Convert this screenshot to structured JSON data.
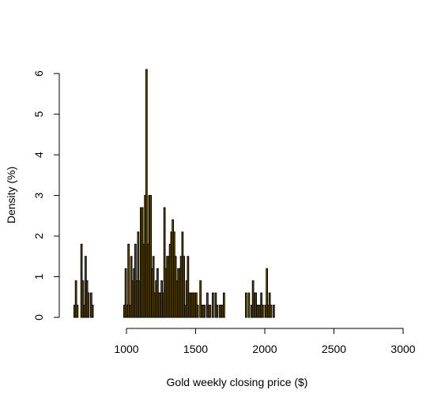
{
  "chart_data": {
    "type": "bar",
    "title": "",
    "xlabel": "Gold weekly closing price ($)",
    "ylabel": "Density (%)",
    "bin_width": 10,
    "xlim": [
      600,
      3000
    ],
    "ylim": [
      0,
      6.1
    ],
    "x_ticks": [
      1000,
      1500,
      2000,
      2500,
      3000
    ],
    "y_ticks": [
      0,
      1,
      2,
      3,
      4,
      5,
      6
    ],
    "grid": false,
    "bar_color": "#7f6000",
    "bins": [
      {
        "x": 620,
        "value": 0.3
      },
      {
        "x": 630,
        "value": 0.9
      },
      {
        "x": 640,
        "value": 0.3
      },
      {
        "x": 670,
        "value": 1.8
      },
      {
        "x": 680,
        "value": 0.9
      },
      {
        "x": 690,
        "value": 0.3
      },
      {
        "x": 700,
        "value": 1.5
      },
      {
        "x": 710,
        "value": 0.9
      },
      {
        "x": 720,
        "value": 0.6
      },
      {
        "x": 740,
        "value": 0.6
      },
      {
        "x": 750,
        "value": 0.3
      },
      {
        "x": 980,
        "value": 0.3
      },
      {
        "x": 990,
        "value": 1.2
      },
      {
        "x": 1000,
        "value": 0.3
      },
      {
        "x": 1010,
        "value": 1.8
      },
      {
        "x": 1020,
        "value": 0.3
      },
      {
        "x": 1030,
        "value": 1.5
      },
      {
        "x": 1040,
        "value": 0.9
      },
      {
        "x": 1050,
        "value": 1.2
      },
      {
        "x": 1060,
        "value": 1.8
      },
      {
        "x": 1070,
        "value": 0.9
      },
      {
        "x": 1080,
        "value": 2.1
      },
      {
        "x": 1090,
        "value": 0.9
      },
      {
        "x": 1100,
        "value": 2.7
      },
      {
        "x": 1110,
        "value": 2.7
      },
      {
        "x": 1120,
        "value": 1.8
      },
      {
        "x": 1130,
        "value": 3.0
      },
      {
        "x": 1140,
        "value": 6.1
      },
      {
        "x": 1150,
        "value": 1.8
      },
      {
        "x": 1160,
        "value": 3.0
      },
      {
        "x": 1170,
        "value": 3.0
      },
      {
        "x": 1180,
        "value": 1.2
      },
      {
        "x": 1190,
        "value": 1.5
      },
      {
        "x": 1200,
        "value": 0.6
      },
      {
        "x": 1210,
        "value": 0.9
      },
      {
        "x": 1220,
        "value": 1.2
      },
      {
        "x": 1230,
        "value": 0.6
      },
      {
        "x": 1240,
        "value": 0.6
      },
      {
        "x": 1250,
        "value": 0.9
      },
      {
        "x": 1260,
        "value": 0.6
      },
      {
        "x": 1270,
        "value": 2.7
      },
      {
        "x": 1280,
        "value": 1.2
      },
      {
        "x": 1290,
        "value": 1.5
      },
      {
        "x": 1300,
        "value": 1.5
      },
      {
        "x": 1310,
        "value": 1.8
      },
      {
        "x": 1320,
        "value": 2.1
      },
      {
        "x": 1330,
        "value": 2.4
      },
      {
        "x": 1340,
        "value": 2.1
      },
      {
        "x": 1350,
        "value": 1.5
      },
      {
        "x": 1360,
        "value": 0.9
      },
      {
        "x": 1370,
        "value": 1.2
      },
      {
        "x": 1380,
        "value": 1.2
      },
      {
        "x": 1390,
        "value": 1.5
      },
      {
        "x": 1400,
        "value": 2.1
      },
      {
        "x": 1410,
        "value": 1.5
      },
      {
        "x": 1420,
        "value": 0.3
      },
      {
        "x": 1430,
        "value": 0.9
      },
      {
        "x": 1440,
        "value": 1.5
      },
      {
        "x": 1450,
        "value": 0.6
      },
      {
        "x": 1460,
        "value": 0.6
      },
      {
        "x": 1470,
        "value": 0.6
      },
      {
        "x": 1480,
        "value": 0.6
      },
      {
        "x": 1490,
        "value": 0.6
      },
      {
        "x": 1500,
        "value": 0.6
      },
      {
        "x": 1510,
        "value": 0.3
      },
      {
        "x": 1530,
        "value": 0.9
      },
      {
        "x": 1540,
        "value": 0.3
      },
      {
        "x": 1550,
        "value": 0.3
      },
      {
        "x": 1560,
        "value": 0.3
      },
      {
        "x": 1580,
        "value": 0.6
      },
      {
        "x": 1590,
        "value": 0.3
      },
      {
        "x": 1600,
        "value": 0.3
      },
      {
        "x": 1620,
        "value": 0.6
      },
      {
        "x": 1640,
        "value": 0.6
      },
      {
        "x": 1650,
        "value": 0.3
      },
      {
        "x": 1670,
        "value": 0.3
      },
      {
        "x": 1680,
        "value": 0.3
      },
      {
        "x": 1690,
        "value": 0.3
      },
      {
        "x": 1700,
        "value": 0.6
      },
      {
        "x": 1860,
        "value": 0.6
      },
      {
        "x": 1880,
        "value": 0.6
      },
      {
        "x": 1900,
        "value": 0.3
      },
      {
        "x": 1910,
        "value": 0.9
      },
      {
        "x": 1920,
        "value": 0.6
      },
      {
        "x": 1930,
        "value": 0.6
      },
      {
        "x": 1940,
        "value": 0.3
      },
      {
        "x": 1950,
        "value": 0.3
      },
      {
        "x": 1960,
        "value": 0.3
      },
      {
        "x": 1970,
        "value": 0.6
      },
      {
        "x": 1980,
        "value": 0.3
      },
      {
        "x": 2000,
        "value": 0.3
      },
      {
        "x": 2010,
        "value": 1.2
      },
      {
        "x": 2020,
        "value": 0.3
      },
      {
        "x": 2030,
        "value": 0.6
      },
      {
        "x": 2040,
        "value": 0.3
      },
      {
        "x": 2060,
        "value": 0.3
      }
    ]
  },
  "axis_labels": {
    "x_ticks": [
      "1000",
      "1500",
      "2000",
      "2500",
      "3000"
    ],
    "y_ticks": [
      "0",
      "1",
      "2",
      "3",
      "4",
      "5",
      "6"
    ]
  }
}
